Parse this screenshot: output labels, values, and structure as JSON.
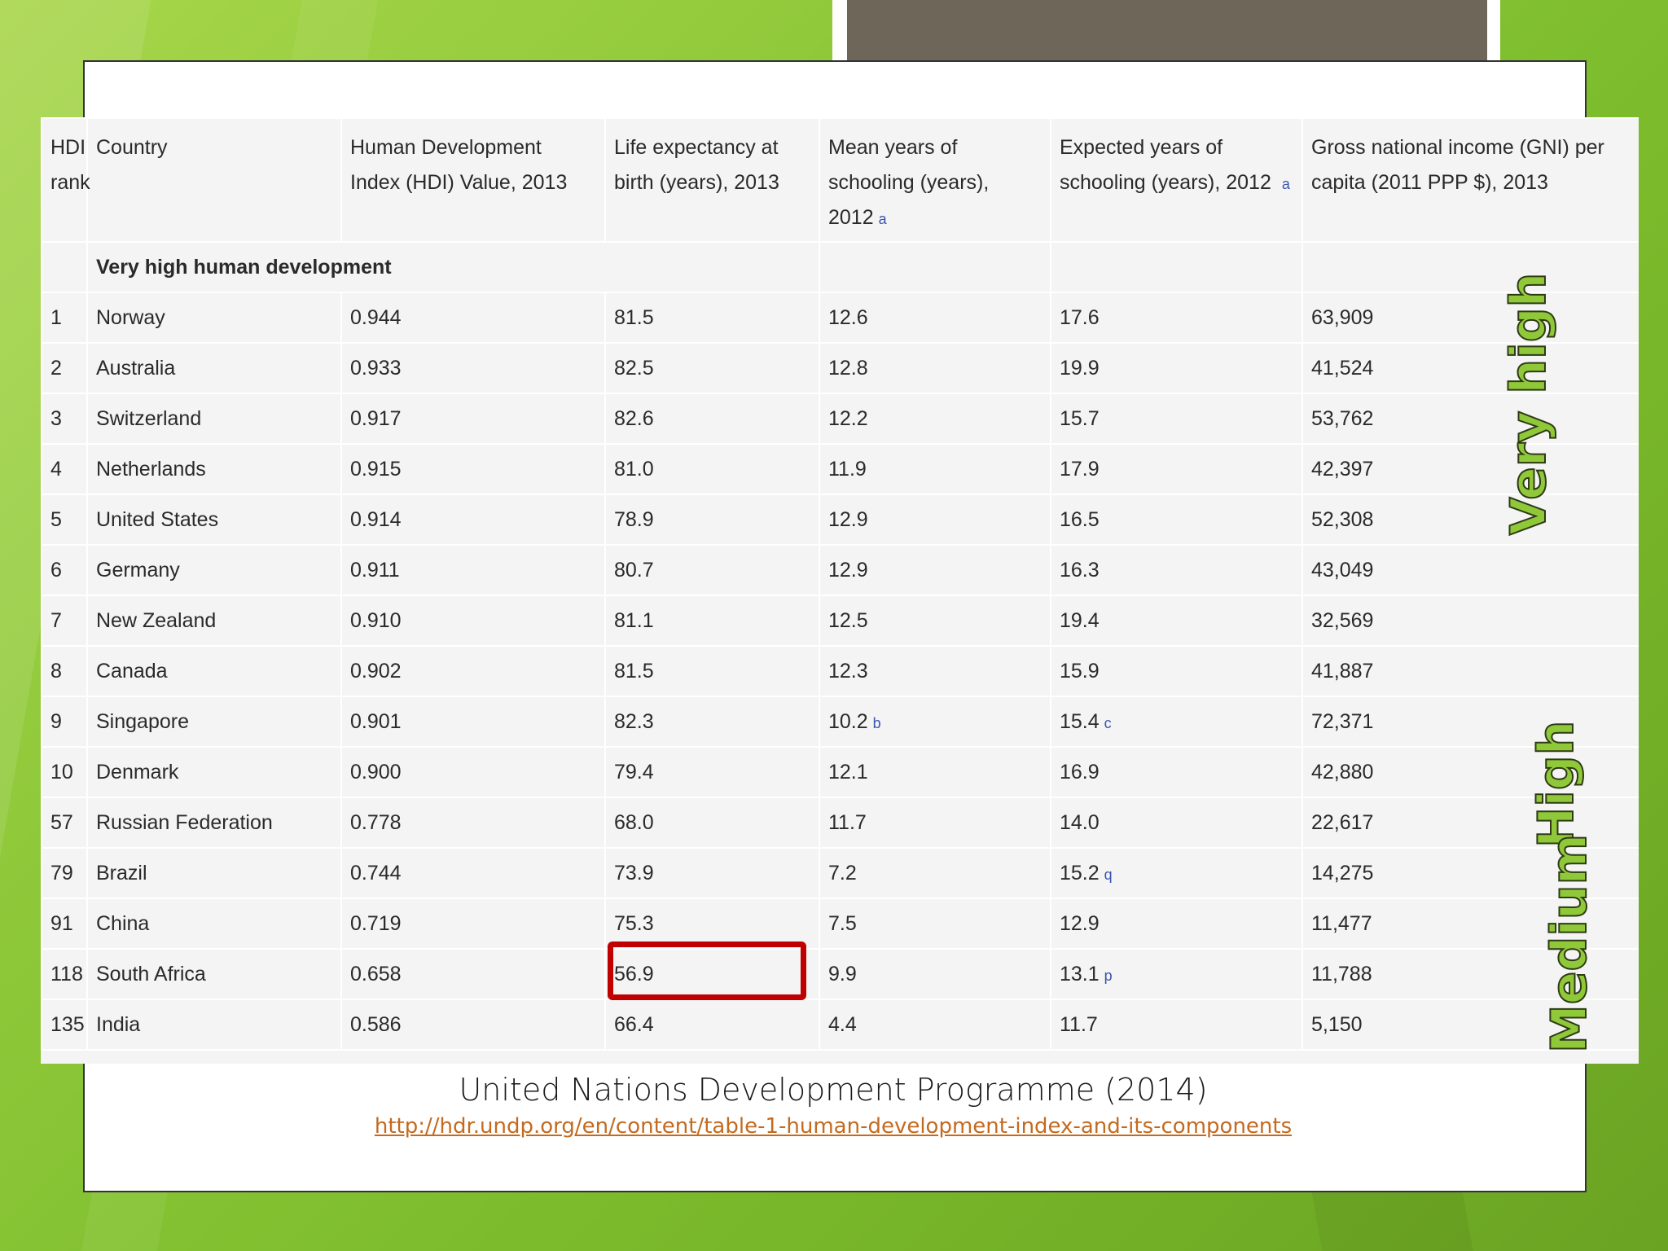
{
  "table": {
    "headers": [
      "HDI rank",
      "Country",
      "Human Development Index (HDI) Value, 2013",
      "Life expectancy at birth (years), 2013",
      "Mean years of schooling (years), 2012",
      "Expected years of schooling (years), 2012",
      "Gross national income (GNI) per capita (2011 PPP $), 2013"
    ],
    "header_notes": {
      "mean_schooling": "a",
      "expected_schooling": "a"
    },
    "group_label": "Very high human development",
    "rows": [
      [
        "1",
        "Norway",
        "0.944",
        "81.5",
        "12.6",
        "17.6",
        "63,909"
      ],
      [
        "2",
        "Australia",
        "0.933",
        "82.5",
        "12.8",
        "19.9",
        "41,524"
      ],
      [
        "3",
        "Switzerland",
        "0.917",
        "82.6",
        "12.2",
        "15.7",
        "53,762"
      ],
      [
        "4",
        "Netherlands",
        "0.915",
        "81.0",
        "11.9",
        "17.9",
        "42,397"
      ],
      [
        "5",
        "United States",
        "0.914",
        "78.9",
        "12.9",
        "16.5",
        "52,308"
      ],
      [
        "6",
        "Germany",
        "0.911",
        "80.7",
        "12.9",
        "16.3",
        "43,049"
      ],
      [
        "7",
        "New Zealand",
        "0.910",
        "81.1",
        "12.5",
        "19.4",
        "32,569"
      ],
      [
        "8",
        "Canada",
        "0.902",
        "81.5",
        "12.3",
        "15.9",
        "41,887"
      ],
      [
        "9",
        "Singapore",
        "0.901",
        "82.3",
        "10.2",
        "15.4",
        "72,371"
      ],
      [
        "10",
        "Denmark",
        "0.900",
        "79.4",
        "12.1",
        "16.9",
        "42,880"
      ],
      [
        "57",
        "Russian Federation",
        "0.778",
        "68.0",
        "11.7",
        "14.0",
        "22,617"
      ],
      [
        "79",
        "Brazil",
        "0.744",
        "73.9",
        "7.2",
        "15.2",
        "14,275"
      ],
      [
        "91",
        "China",
        "0.719",
        "75.3",
        "7.5",
        "12.9",
        "11,477"
      ],
      [
        "118",
        "South Africa",
        "0.658",
        "56.9",
        "9.9",
        "13.1",
        "11,788"
      ],
      [
        "135",
        "India",
        "0.586",
        "66.4",
        "4.4",
        "11.7",
        "5,150"
      ]
    ],
    "cell_notes": {
      "singapore_mean": "b",
      "singapore_expected": "c",
      "brazil_expected": "q",
      "south_africa_expected": "p"
    }
  },
  "categories": {
    "very_high": "Very high",
    "high": "High",
    "medium": "Medium"
  },
  "highlight": {
    "country": "South Africa",
    "value": "56.9",
    "color": "#c00000"
  },
  "caption": "United Nations Development Programme (2014)",
  "source_url": "http://hdr.undp.org/en/content/table-1-human-development-index-and-its-components",
  "colors": {
    "background": "#8fc93a",
    "label_fill": "#8fc93a",
    "link": "#c46a1f",
    "accent_block": "#6f665a"
  }
}
